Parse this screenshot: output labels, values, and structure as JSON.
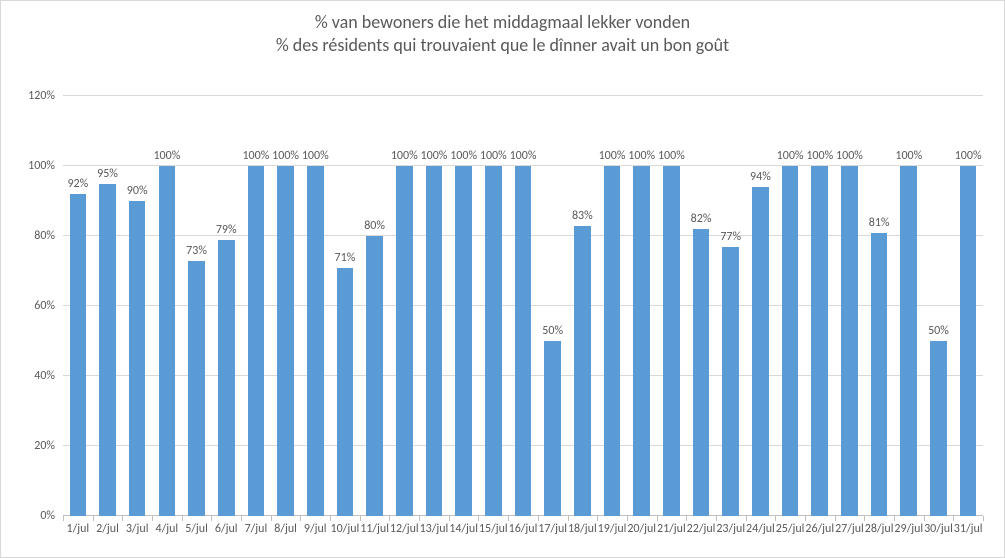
{
  "chart": {
    "type": "bar",
    "title_line1": "% van bewoners die het middagmaal lekker vonden",
    "title_line2": "% des résidents qui trouvaient que le dînner avait un bon goût",
    "title_fontsize": 18,
    "title_color": "#595959",
    "background_color": "#ffffff",
    "plot_background_color": "#ffffff",
    "border_color": "#d9d9d9",
    "bar_color": "#5b9bd5",
    "grid_color": "#d9d9d9",
    "axis_line_color": "#bfbfbf",
    "label_color": "#595959",
    "label_fontsize": 12,
    "bar_width_ratio": 0.56,
    "y_axis": {
      "min": 0,
      "max": 120,
      "tick_step": 20,
      "ticks": [
        0,
        20,
        40,
        60,
        80,
        100,
        120
      ],
      "tick_labels": [
        "0%",
        "20%",
        "40%",
        "60%",
        "80%",
        "100%",
        "120%"
      ]
    },
    "categories": [
      "1/jul",
      "2/jul",
      "3/jul",
      "4/jul",
      "5/jul",
      "6/jul",
      "7/jul",
      "8/jul",
      "9/jul",
      "10/jul",
      "11/jul",
      "12/jul",
      "13/jul",
      "14/jul",
      "15/jul",
      "16/jul",
      "17/jul",
      "18/jul",
      "19/jul",
      "20/jul",
      "21/jul",
      "22/jul",
      "23/jul",
      "24/jul",
      "25/jul",
      "26/jul",
      "27/jul",
      "28/jul",
      "29/jul",
      "30/jul",
      "31/jul"
    ],
    "values": [
      92,
      95,
      90,
      100,
      73,
      79,
      100,
      100,
      100,
      71,
      80,
      100,
      100,
      100,
      100,
      100,
      50,
      83,
      100,
      100,
      100,
      82,
      77,
      94,
      100,
      100,
      100,
      81,
      100,
      50,
      100
    ],
    "value_labels": [
      "92%",
      "95%",
      "90%",
      "100%",
      "73%",
      "79%",
      "100%",
      "100%",
      "100%",
      "71%",
      "80%",
      "100%",
      "100%",
      "100%",
      "100%",
      "100%",
      "50%",
      "83%",
      "100%",
      "100%",
      "100%",
      "82%",
      "77%",
      "94%",
      "100%",
      "100%",
      "100%",
      "81%",
      "100%",
      "50%",
      "100%"
    ]
  }
}
